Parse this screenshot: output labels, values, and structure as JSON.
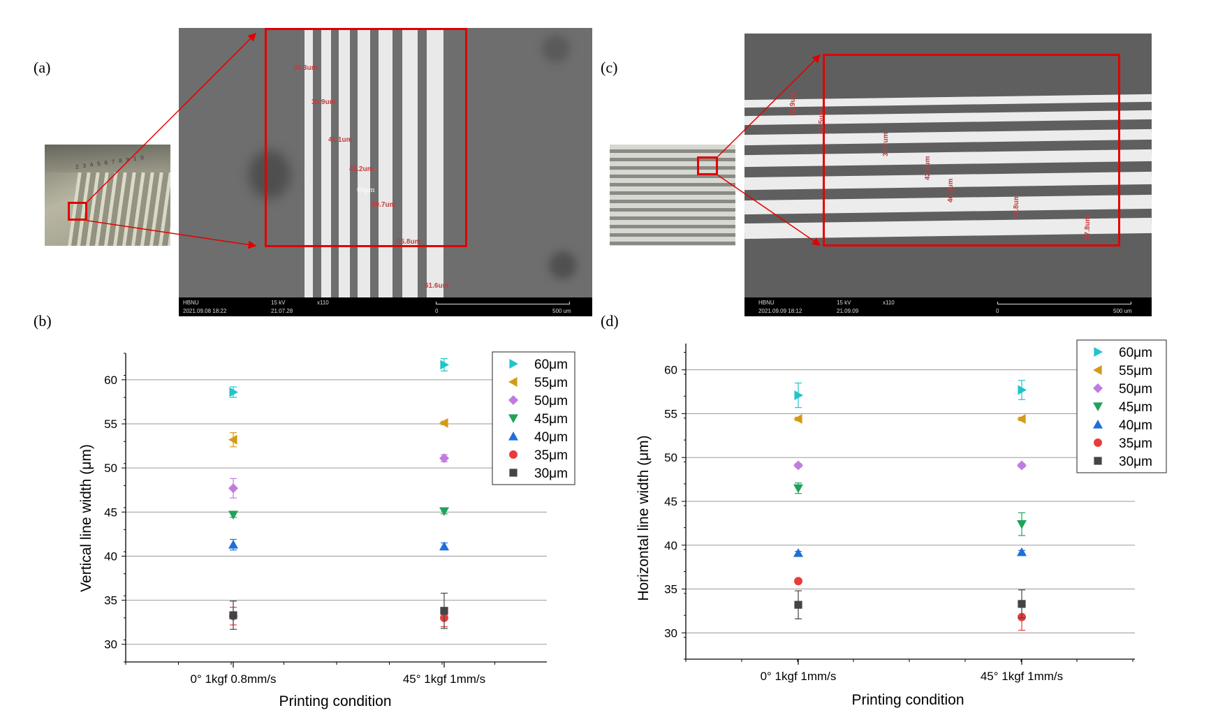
{
  "panels": {
    "a": {
      "letter": "(a)"
    },
    "b": {
      "letter": "(b)"
    },
    "c": {
      "letter": "(c)"
    },
    "d": {
      "letter": "(d)"
    }
  },
  "sem_a": {
    "bar_left_1": "HBNU",
    "bar_left_2": "2021.09.08 18:22",
    "bar_kv": "15 kV",
    "bar_time": "21.07.28",
    "bar_mag": "x110",
    "scale_start": "0",
    "scale_end": "500 um",
    "label_60": "60μm",
    "measurements": [
      "30.3um",
      "35.9um",
      "41.1um",
      "45.2um",
      "50.7um",
      "55.8um",
      "61.6um"
    ]
  },
  "sem_c": {
    "bar_left_1": "HBNU",
    "bar_left_2": "2021.09.09 18:12",
    "bar_kv": "15 kV",
    "bar_time": "21.09.09",
    "bar_mag": "x110",
    "scale_start": "0",
    "scale_end": "500 um",
    "measurements": [
      "32.9um",
      "31.5um",
      "39.7um",
      "42.4um",
      "46.3um",
      "54.8um",
      "57.8um"
    ]
  },
  "photo_a": {
    "labels": [
      "2",
      "3",
      "4",
      "5",
      "6",
      "7",
      "8",
      "9",
      "10"
    ]
  },
  "colors": {
    "60": "#22c4c9",
    "55": "#d49a17",
    "50": "#c07be0",
    "45": "#1fa35a",
    "40": "#1e6fd9",
    "35": "#e83b3b",
    "30": "#444444",
    "red_box": "#e00000"
  },
  "chart_data": [
    {
      "type": "scatter",
      "panel": "(b)",
      "xlabel": "Printing condition",
      "ylabel": "Vertical line width (μm)",
      "categories": [
        "0° 1kgf 0.8mm/s",
        "45° 1kgf 1mm/s"
      ],
      "ylim": [
        28,
        63
      ],
      "yticks": [
        30,
        35,
        40,
        45,
        50,
        55,
        60
      ],
      "grid": true,
      "legend_position": "top-right",
      "series": [
        {
          "name": "60μm",
          "marker": "triangle-right",
          "color": "#22c4c9",
          "values": [
            58.6,
            61.7
          ],
          "errors": [
            0.6,
            0.7
          ]
        },
        {
          "name": "55μm",
          "marker": "triangle-left",
          "color": "#d49a17",
          "values": [
            53.2,
            55.1
          ],
          "errors": [
            0.8,
            0.2
          ]
        },
        {
          "name": "50μm",
          "marker": "diamond",
          "color": "#c07be0",
          "values": [
            47.7,
            51.1
          ],
          "errors": [
            1.1,
            0.4
          ]
        },
        {
          "name": "45μm",
          "marker": "triangle-down",
          "color": "#1fa35a",
          "values": [
            44.7,
            45.1
          ],
          "errors": [
            0.3,
            0.3
          ]
        },
        {
          "name": "40μm",
          "marker": "triangle-up",
          "color": "#1e6fd9",
          "values": [
            41.3,
            41.1
          ],
          "errors": [
            0.6,
            0.4
          ]
        },
        {
          "name": "35μm",
          "marker": "circle",
          "color": "#e83b3b",
          "values": [
            33.2,
            33.0
          ],
          "errors": [
            1.0,
            1.0
          ]
        },
        {
          "name": "30μm",
          "marker": "square",
          "color": "#444444",
          "values": [
            33.3,
            33.8
          ],
          "errors": [
            1.6,
            2.0
          ]
        }
      ]
    },
    {
      "type": "scatter",
      "panel": "(d)",
      "xlabel": "Printing condition",
      "ylabel": "Horizontal line width (μm)",
      "categories": [
        "0° 1kgf 1mm/s",
        "45° 1kgf 1mm/s"
      ],
      "ylim": [
        27,
        63
      ],
      "yticks": [
        30,
        35,
        40,
        45,
        50,
        55,
        60
      ],
      "grid": true,
      "legend_position": "top-right",
      "series": [
        {
          "name": "60μm",
          "marker": "triangle-right",
          "color": "#22c4c9",
          "values": [
            57.1,
            57.7
          ],
          "errors": [
            1.4,
            1.1
          ]
        },
        {
          "name": "55μm",
          "marker": "triangle-left",
          "color": "#d49a17",
          "values": [
            54.4,
            54.4
          ],
          "errors": [
            0.2,
            0.2
          ]
        },
        {
          "name": "50μm",
          "marker": "diamond",
          "color": "#c07be0",
          "values": [
            49.1,
            49.1
          ],
          "errors": [
            0.2,
            0.2
          ]
        },
        {
          "name": "45μm",
          "marker": "triangle-down",
          "color": "#1fa35a",
          "values": [
            46.5,
            42.4
          ],
          "errors": [
            0.6,
            1.3
          ]
        },
        {
          "name": "40μm",
          "marker": "triangle-up",
          "color": "#1e6fd9",
          "values": [
            39.1,
            39.2
          ],
          "errors": [
            0.2,
            0.2
          ]
        },
        {
          "name": "35μm",
          "marker": "circle",
          "color": "#e83b3b",
          "values": [
            35.9,
            31.8
          ],
          "errors": [
            0.2,
            1.5
          ]
        },
        {
          "name": "30μm",
          "marker": "square",
          "color": "#444444",
          "values": [
            33.2,
            33.3
          ],
          "errors": [
            1.6,
            1.6
          ]
        }
      ]
    }
  ]
}
